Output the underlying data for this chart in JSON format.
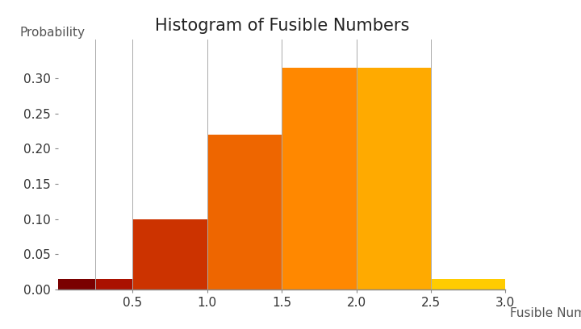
{
  "title": "Histogram of Fusible Numbers",
  "xlabel": "Fusible Numbers",
  "ylabel": "Probability",
  "bins": [
    0.0,
    0.25,
    0.5,
    1.0,
    1.5,
    2.0,
    2.5,
    3.0
  ],
  "heights": [
    0.015,
    0.015,
    0.1,
    0.22,
    0.315,
    0.315,
    0.015
  ],
  "colors": [
    "#7a0000",
    "#aa1100",
    "#cc3300",
    "#ee6600",
    "#ff8800",
    "#ffaa00",
    "#ffcc00"
  ],
  "xlim": [
    0.0,
    3.0
  ],
  "ylim": [
    0.0,
    0.355
  ],
  "yticks": [
    0.0,
    0.05,
    0.1,
    0.15,
    0.2,
    0.25,
    0.3
  ],
  "xticks": [
    0.5,
    1.0,
    1.5,
    2.0,
    2.5,
    3.0
  ],
  "title_fontsize": 15,
  "label_fontsize": 11,
  "tick_fontsize": 11,
  "background_color": "#ffffff",
  "bar_edge_color": "none",
  "separator_color": "#aaaaaa",
  "axis_color": "#888888"
}
